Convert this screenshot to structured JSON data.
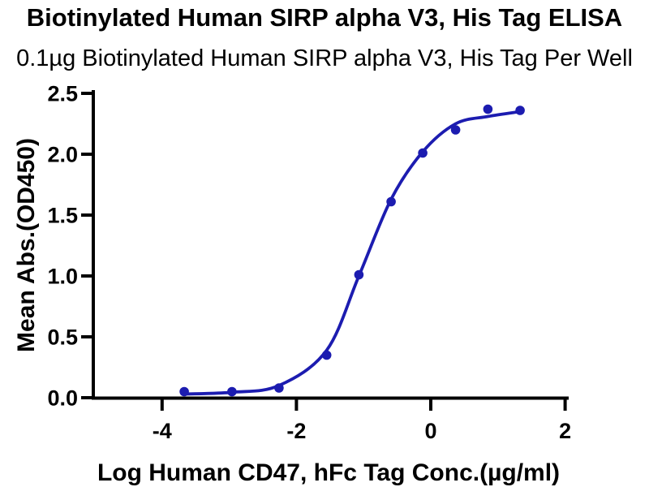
{
  "chart_data": {
    "type": "scatter",
    "title": "Biotinylated Human SIRP alpha V3, His Tag ELISA",
    "subtitle": "0.1µg Biotinylated Human SIRP alpha V3, His Tag Per Well",
    "xlabel": "Log Human CD47, hFc Tag Conc.(µg/ml)",
    "ylabel": "Mean Abs.(OD450)",
    "xlim": [
      -5.05,
      2.05
    ],
    "ylim": [
      0,
      2.5
    ],
    "grid": false,
    "legend": false,
    "xticks": [
      {
        "v": -4,
        "label": "-4"
      },
      {
        "v": -2,
        "label": "-2"
      },
      {
        "v": 0,
        "label": "0"
      },
      {
        "v": 2,
        "label": "2"
      }
    ],
    "yticks": [
      {
        "v": 0.0,
        "label": "0.0"
      },
      {
        "v": 0.5,
        "label": "0.5"
      },
      {
        "v": 1.0,
        "label": "1.0"
      },
      {
        "v": 1.5,
        "label": "1.5"
      },
      {
        "v": 2.0,
        "label": "2.0"
      },
      {
        "v": 2.5,
        "label": "2.5"
      }
    ],
    "series": [
      {
        "type": "scatter_with_4pl_fit",
        "color": "#1c1cb0",
        "points": [
          [
            -3.67,
            0.05
          ],
          [
            -2.96,
            0.05
          ],
          [
            -2.26,
            0.08
          ],
          [
            -1.55,
            0.35
          ],
          [
            -1.07,
            1.01
          ],
          [
            -0.59,
            1.61
          ],
          [
            -0.12,
            2.01
          ],
          [
            0.37,
            2.2
          ],
          [
            0.85,
            2.37
          ],
          [
            1.33,
            2.36
          ]
        ],
        "fit_curve": [
          [
            -3.67,
            0.03
          ],
          [
            -2.96,
            0.045
          ],
          [
            -2.26,
            0.1
          ],
          [
            -1.55,
            0.39
          ],
          [
            -1.07,
            1.0
          ],
          [
            -0.59,
            1.63
          ],
          [
            -0.12,
            2.02
          ],
          [
            0.37,
            2.25
          ],
          [
            0.85,
            2.31
          ],
          [
            1.33,
            2.35
          ]
        ]
      }
    ],
    "colors": {
      "curve": "#1c1cb0",
      "axis": "#000000",
      "background": "#ffffff"
    }
  }
}
